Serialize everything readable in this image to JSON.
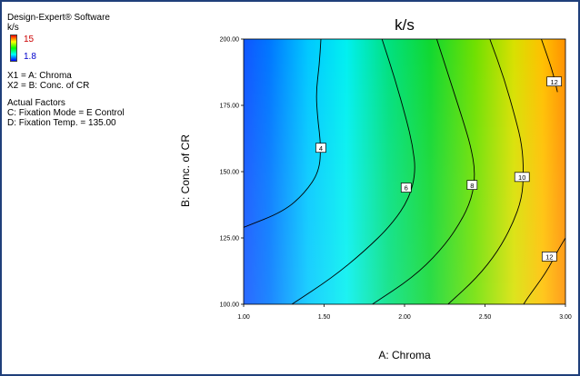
{
  "legend": {
    "software": "Design-Expert® Software",
    "response": "k/s",
    "high": "15",
    "low": "1.8",
    "x1": "X1 = A: Chroma",
    "x2": "X2 = B: Conc. of CR",
    "actual_factors_heading": "Actual Factors",
    "factor_c": "C: Fixation Mode = E Control",
    "factor_d": "D: Fixation Temp. = 135.00"
  },
  "chart_data": {
    "type": "contour",
    "title": "k/s",
    "xlabel": "A: Chroma",
    "ylabel": "B: Conc. of CR",
    "xlim": [
      1.0,
      3.0
    ],
    "ylim": [
      100.0,
      200.0
    ],
    "x_ticks": [
      "1.00",
      "1.50",
      "2.00",
      "2.50",
      "3.00"
    ],
    "y_ticks": [
      "100.00",
      "125.00",
      "150.00",
      "175.00",
      "200.00"
    ],
    "colorbar": {
      "min": 1.8,
      "max": 15,
      "colors": [
        "#0000ff",
        "#00ffff",
        "#00ff00",
        "#ffff00",
        "#ff0000"
      ]
    },
    "contours": [
      {
        "label": "4",
        "points": [
          [
            1.48,
            200
          ],
          [
            1.47,
            190
          ],
          [
            1.45,
            180
          ],
          [
            1.46,
            170
          ],
          [
            1.48,
            160
          ],
          [
            1.47,
            150
          ],
          [
            1.38,
            142
          ],
          [
            1.25,
            135
          ],
          [
            1.0,
            129
          ]
        ],
        "label_at": [
          1.48,
          159
        ]
      },
      {
        "label": "6",
        "points": [
          [
            1.86,
            200
          ],
          [
            1.94,
            185
          ],
          [
            2.01,
            170
          ],
          [
            2.05,
            160
          ],
          [
            2.07,
            150
          ],
          [
            2.03,
            140
          ],
          [
            1.92,
            130
          ],
          [
            1.75,
            120
          ],
          [
            1.55,
            110
          ],
          [
            1.3,
            100
          ]
        ],
        "label_at": [
          2.01,
          144
        ]
      },
      {
        "label": "8",
        "points": [
          [
            2.2,
            200
          ],
          [
            2.28,
            185
          ],
          [
            2.36,
            170
          ],
          [
            2.41,
            160
          ],
          [
            2.44,
            150
          ],
          [
            2.42,
            140
          ],
          [
            2.34,
            130
          ],
          [
            2.22,
            120
          ],
          [
            2.05,
            110
          ],
          [
            1.8,
            100
          ]
        ],
        "label_at": [
          2.42,
          145
        ]
      },
      {
        "label": "10",
        "points": [
          [
            2.53,
            200
          ],
          [
            2.62,
            185
          ],
          [
            2.69,
            170
          ],
          [
            2.73,
            160
          ],
          [
            2.74,
            150
          ],
          [
            2.73,
            140
          ],
          [
            2.67,
            130
          ],
          [
            2.58,
            120
          ],
          [
            2.45,
            110
          ],
          [
            2.27,
            100
          ]
        ],
        "label_at": [
          2.73,
          148
        ]
      },
      {
        "label": "12",
        "points": [
          [
            2.85,
            200
          ],
          [
            2.92,
            188
          ],
          [
            2.95,
            180
          ]
        ],
        "label_at": [
          2.93,
          184
        ]
      },
      {
        "label": "12",
        "points": [
          [
            3.0,
            125
          ],
          [
            2.95,
            120
          ],
          [
            2.88,
            112
          ],
          [
            2.76,
            102
          ],
          [
            2.74,
            100
          ]
        ],
        "label_at": [
          2.9,
          118
        ]
      }
    ]
  }
}
